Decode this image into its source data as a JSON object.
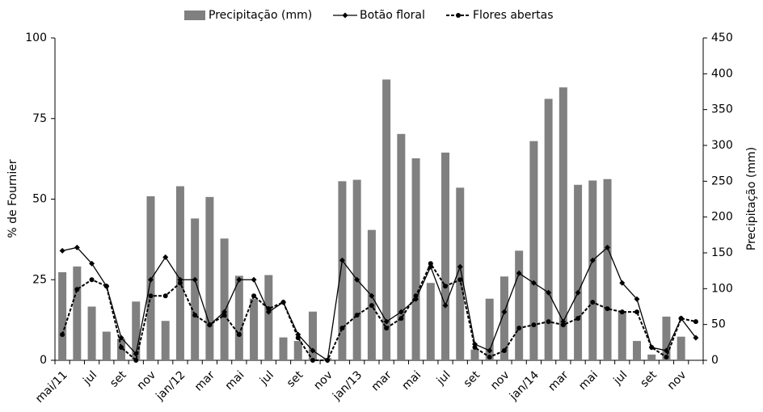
{
  "chart_data": {
    "type": "bar-line",
    "categories": [
      "mai/11",
      null,
      "jul",
      null,
      "set",
      null,
      "nov",
      null,
      "jan/12",
      null,
      "mar",
      null,
      "mai",
      null,
      "jul",
      null,
      "set",
      null,
      "nov",
      null,
      "jan/13",
      null,
      "mar",
      null,
      "mai",
      null,
      "jul",
      null,
      "set",
      null,
      "nov",
      null,
      "jan/14",
      null,
      "mar",
      null,
      "mai",
      null,
      "jul",
      null,
      "set",
      null,
      "nov",
      null
    ],
    "series": [
      {
        "name": "Precipitação (mm)",
        "kind": "bar",
        "axis": "y2",
        "color": "#808080",
        "values": [
          123,
          131,
          75,
          40,
          30,
          82,
          229,
          55,
          243,
          198,
          228,
          170,
          118,
          86,
          119,
          32,
          27,
          68,
          3,
          250,
          252,
          182,
          392,
          316,
          282,
          108,
          290,
          241,
          15,
          86,
          117,
          153,
          306,
          365,
          381,
          245,
          251,
          253,
          68,
          27,
          8,
          61,
          33,
          null
        ]
      },
      {
        "name": "Botão floral",
        "kind": "line",
        "color": "#000000",
        "marker": "diamond",
        "dash": false,
        "values": [
          34,
          35,
          30,
          23,
          7,
          2,
          25,
          32,
          25,
          25,
          11,
          15,
          25,
          25,
          15,
          18,
          8,
          3,
          0,
          31,
          25,
          20,
          12,
          15,
          19,
          29,
          17,
          29,
          5,
          3,
          15,
          27,
          24,
          21,
          12,
          21,
          31,
          35,
          24,
          19,
          4,
          3,
          13,
          7
        ]
      },
      {
        "name": "Flores abertas",
        "kind": "line",
        "color": "#000000",
        "marker": "circle",
        "dash": true,
        "values": [
          8,
          22,
          25,
          23,
          4,
          0,
          20,
          20,
          24,
          14,
          11,
          14,
          8,
          20,
          16,
          18,
          7,
          0,
          0,
          10,
          14,
          17,
          10,
          13,
          20,
          30,
          23,
          25,
          4,
          1,
          3,
          10,
          11,
          12,
          11,
          13,
          18,
          16,
          15,
          15,
          4,
          1,
          13,
          12
        ]
      }
    ],
    "y_label": "% de Fournier",
    "y2_label": "Precipitação (mm)",
    "ylim": [
      0,
      100
    ],
    "yticks": [
      0,
      25,
      50,
      75,
      100
    ],
    "y2lim": [
      0,
      450
    ],
    "y2ticks": [
      0,
      50,
      100,
      150,
      200,
      250,
      300,
      350,
      400,
      450
    ],
    "grid": false,
    "legend": "top"
  }
}
